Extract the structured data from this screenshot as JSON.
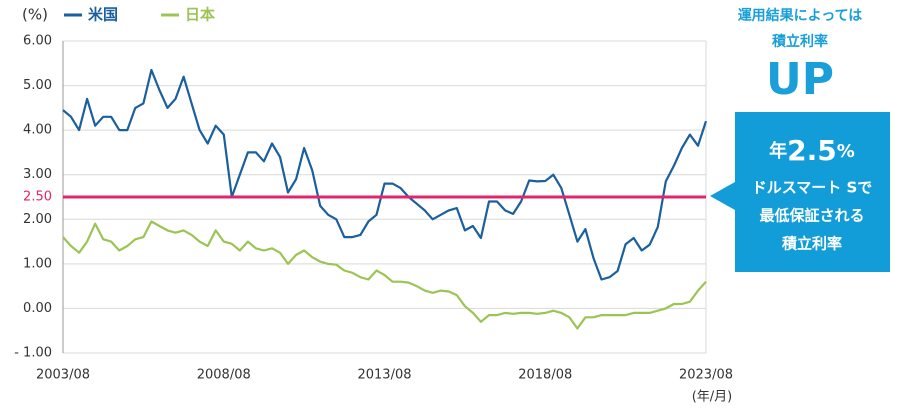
{
  "chart_data": {
    "type": "line",
    "y_unit": "(%)",
    "x_unit": "(年/月)",
    "x": [
      "2003/08",
      "2003/11",
      "2004/02",
      "2004/05",
      "2004/08",
      "2004/11",
      "2005/02",
      "2005/05",
      "2005/08",
      "2005/11",
      "2006/02",
      "2006/05",
      "2006/08",
      "2006/11",
      "2007/02",
      "2007/05",
      "2007/08",
      "2007/11",
      "2008/02",
      "2008/05",
      "2008/08",
      "2008/11",
      "2009/02",
      "2009/05",
      "2009/08",
      "2009/11",
      "2010/02",
      "2010/05",
      "2010/08",
      "2010/11",
      "2011/02",
      "2011/05",
      "2011/08",
      "2011/11",
      "2012/02",
      "2012/05",
      "2012/08",
      "2012/11",
      "2013/02",
      "2013/05",
      "2013/08",
      "2013/11",
      "2014/02",
      "2014/05",
      "2014/08",
      "2014/11",
      "2015/02",
      "2015/05",
      "2015/08",
      "2015/11",
      "2016/02",
      "2016/05",
      "2016/08",
      "2016/11",
      "2017/02",
      "2017/05",
      "2017/08",
      "2017/11",
      "2018/02",
      "2018/05",
      "2018/08",
      "2018/11",
      "2019/02",
      "2019/05",
      "2019/08",
      "2019/11",
      "2020/02",
      "2020/05",
      "2020/08",
      "2020/11",
      "2021/02",
      "2021/05",
      "2021/08",
      "2021/11",
      "2022/02",
      "2022/05",
      "2022/08",
      "2022/11",
      "2023/02",
      "2023/05",
      "2023/08"
    ],
    "series": [
      {
        "name": "米国",
        "color": "#1a5f9e",
        "values": [
          4.45,
          4.3,
          4.0,
          4.7,
          4.1,
          4.3,
          4.3,
          4.0,
          4.0,
          4.5,
          4.6,
          5.35,
          4.9,
          4.5,
          4.7,
          5.2,
          4.6,
          4.0,
          3.7,
          4.1,
          3.9,
          2.5,
          3.0,
          3.5,
          3.5,
          3.3,
          3.7,
          3.4,
          2.6,
          2.9,
          3.6,
          3.1,
          2.3,
          2.1,
          2.0,
          1.6,
          1.6,
          1.65,
          1.95,
          2.1,
          2.8,
          2.8,
          2.7,
          2.5,
          2.35,
          2.2,
          2.0,
          2.1,
          2.2,
          2.25,
          1.75,
          1.85,
          1.58,
          2.4,
          2.4,
          2.2,
          2.12,
          2.4,
          2.87,
          2.85,
          2.86,
          3.0,
          2.7,
          2.1,
          1.5,
          1.78,
          1.13,
          0.65,
          0.7,
          0.84,
          1.44,
          1.58,
          1.3,
          1.43,
          1.83,
          2.85,
          3.2,
          3.6,
          3.9,
          3.65,
          4.2
        ]
      },
      {
        "name": "日本",
        "color": "#9cc455",
        "values": [
          1.6,
          1.4,
          1.25,
          1.5,
          1.9,
          1.55,
          1.5,
          1.3,
          1.4,
          1.55,
          1.6,
          1.95,
          1.85,
          1.75,
          1.7,
          1.75,
          1.65,
          1.5,
          1.4,
          1.75,
          1.5,
          1.45,
          1.3,
          1.5,
          1.35,
          1.3,
          1.35,
          1.25,
          1.0,
          1.2,
          1.3,
          1.15,
          1.05,
          1.0,
          0.98,
          0.85,
          0.8,
          0.7,
          0.65,
          0.85,
          0.75,
          0.6,
          0.6,
          0.58,
          0.5,
          0.4,
          0.35,
          0.4,
          0.38,
          0.3,
          0.05,
          -0.1,
          -0.3,
          -0.15,
          -0.15,
          -0.1,
          -0.12,
          -0.1,
          -0.1,
          -0.12,
          -0.1,
          -0.05,
          -0.1,
          -0.2,
          -0.45,
          -0.2,
          -0.2,
          -0.15,
          -0.15,
          -0.15,
          -0.15,
          -0.1,
          -0.1,
          -0.1,
          -0.05,
          0.0,
          0.1,
          0.1,
          0.15,
          0.4,
          0.6
        ]
      }
    ],
    "xticks": [
      "2003/08",
      "2008/08",
      "2013/08",
      "2018/08",
      "2023/08"
    ],
    "ylim": [
      -1,
      6
    ],
    "yticks": [
      {
        "value": -1,
        "label": "- 1.00"
      },
      {
        "value": 0,
        "label": "0.00"
      },
      {
        "value": 1,
        "label": "1.00"
      },
      {
        "value": 2,
        "label": "2.00"
      },
      {
        "value": 3,
        "label": "3.00"
      },
      {
        "value": 4,
        "label": "4.00"
      },
      {
        "value": 5,
        "label": "5.00"
      },
      {
        "value": 6,
        "label": "6.00"
      }
    ],
    "grid": true,
    "reference_line": {
      "value": 2.5,
      "label": "2.50",
      "color": "#e2266b"
    },
    "annotation": {
      "line1": "運用結果によっては",
      "line2": "積立利率",
      "up": "UP",
      "callout": {
        "prefix": "年",
        "rate": "2.5",
        "suffix": "%",
        "lines": [
          "ドルスマート Sで",
          "最低保証される",
          "積立利率"
        ]
      }
    }
  }
}
